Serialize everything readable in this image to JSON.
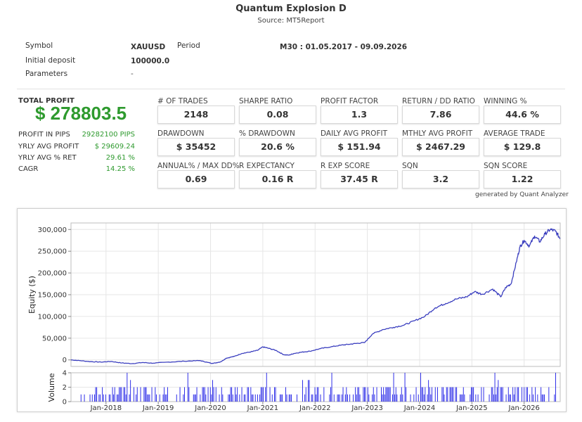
{
  "report": {
    "title": "Quantum Explosion D",
    "source": "Source: MT5Report"
  },
  "info": {
    "symbol_label": "Symbol",
    "symbol_value": "XAUUSD",
    "period_label": "Period",
    "period_value": "M30 : 01.05.2017 - 09.09.2026",
    "deposit_label": "Initial deposit",
    "deposit_value": "100000.0",
    "parameters_label": "Parameters",
    "parameters_value": "-"
  },
  "summary": {
    "total_profit_label": "TOTAL PROFIT",
    "total_profit_value": "$ 278803.5",
    "rows": [
      {
        "label": "PROFIT IN PIPS",
        "value": "29282100 PIPS"
      },
      {
        "label": "YRLY AVG PROFIT",
        "value": "$ 29609.24"
      },
      {
        "label": "YRLY AVG % RET",
        "value": "29.61 %"
      },
      {
        "label": "CAGR",
        "value": "14.25 %"
      }
    ],
    "accent_color": "#2e9a2e"
  },
  "stats": [
    {
      "label": "# OF TRADES",
      "value": "2148"
    },
    {
      "label": "SHARPE RATIO",
      "value": "0.08"
    },
    {
      "label": "PROFIT FACTOR",
      "value": "1.3"
    },
    {
      "label": "RETURN / DD RATIO",
      "value": "7.86"
    },
    {
      "label": "WINNING %",
      "value": "44.6 %"
    },
    {
      "label": "DRAWDOWN",
      "value": "$ 35452"
    },
    {
      "label": "% DRAWDOWN",
      "value": "20.6 %"
    },
    {
      "label": "DAILY AVG PROFIT",
      "value": "$ 151.94"
    },
    {
      "label": "MTHLY AVG PROFIT",
      "value": "$ 2467.29"
    },
    {
      "label": "AVERAGE TRADE",
      "value": "$ 129.8"
    },
    {
      "label": "ANNUAL% / MAX DD%",
      "value": "0.69"
    },
    {
      "label": "R EXPECTANCY",
      "value": "0.16 R"
    },
    {
      "label": "R EXP SCORE",
      "value": "37.45 R"
    },
    {
      "label": "SQN",
      "value": "3.2"
    },
    {
      "label": "SQN SCORE",
      "value": "1.22"
    }
  ],
  "generated_by": "generated by Quant Analyzer",
  "chart_data": {
    "type": "line",
    "ylabel": "Equity ($)",
    "ylim": [
      -15000,
      315000
    ],
    "yticks": [
      {
        "value": 0,
        "label": "0"
      },
      {
        "value": 50000,
        "label": "50,000"
      },
      {
        "value": 100000,
        "label": "100,000"
      },
      {
        "value": 150000,
        "label": "150,000"
      },
      {
        "value": 200000,
        "label": "200,000"
      },
      {
        "value": 250000,
        "label": "250,000"
      },
      {
        "value": 300000,
        "label": "300,000"
      }
    ],
    "xlim": [
      2017.33,
      2026.69
    ],
    "xticks": [
      {
        "value": 2018.0,
        "label": "Jan-2018"
      },
      {
        "value": 2019.0,
        "label": "Jan-2019"
      },
      {
        "value": 2020.0,
        "label": "Jan-2020"
      },
      {
        "value": 2021.0,
        "label": "Jan-2021"
      },
      {
        "value": 2022.0,
        "label": "Jan-2022"
      },
      {
        "value": 2023.0,
        "label": "Jan-2023"
      },
      {
        "value": 2024.0,
        "label": "Jan-2024"
      },
      {
        "value": 2025.0,
        "label": "Jan-2025"
      },
      {
        "value": 2026.0,
        "label": "Jan-2026"
      }
    ],
    "line_color": "#3b3fbf",
    "grid": true,
    "equity": [
      [
        2017.33,
        0
      ],
      [
        2017.5,
        -1500
      ],
      [
        2017.7,
        -4000
      ],
      [
        2017.9,
        -5000
      ],
      [
        2018.1,
        -3500
      ],
      [
        2018.3,
        -7000
      ],
      [
        2018.5,
        -8500
      ],
      [
        2018.7,
        -6000
      ],
      [
        2018.9,
        -7500
      ],
      [
        2019.2,
        -5000
      ],
      [
        2019.5,
        -3000
      ],
      [
        2019.8,
        -1500
      ],
      [
        2019.95,
        -6000
      ],
      [
        2020.05,
        -8000
      ],
      [
        2020.2,
        -4000
      ],
      [
        2020.3,
        4000
      ],
      [
        2020.45,
        8000
      ],
      [
        2020.6,
        15000
      ],
      [
        2020.75,
        18000
      ],
      [
        2020.9,
        22000
      ],
      [
        2021.0,
        30000
      ],
      [
        2021.1,
        27000
      ],
      [
        2021.25,
        22000
      ],
      [
        2021.4,
        12000
      ],
      [
        2021.5,
        11000
      ],
      [
        2021.6,
        15000
      ],
      [
        2021.75,
        18000
      ],
      [
        2021.9,
        20000
      ],
      [
        2022.1,
        26000
      ],
      [
        2022.3,
        30000
      ],
      [
        2022.5,
        34000
      ],
      [
        2022.65,
        36000
      ],
      [
        2022.8,
        38000
      ],
      [
        2022.95,
        40000
      ],
      [
        2023.1,
        60000
      ],
      [
        2023.3,
        70000
      ],
      [
        2023.5,
        75000
      ],
      [
        2023.7,
        80000
      ],
      [
        2023.9,
        90000
      ],
      [
        2024.1,
        100000
      ],
      [
        2024.3,
        120000
      ],
      [
        2024.5,
        130000
      ],
      [
        2024.7,
        140000
      ],
      [
        2024.9,
        145000
      ],
      [
        2025.05,
        157000
      ],
      [
        2025.2,
        151000
      ],
      [
        2025.4,
        163000
      ],
      [
        2025.55,
        145000
      ],
      [
        2025.65,
        167000
      ],
      [
        2025.75,
        175000
      ],
      [
        2025.85,
        225000
      ],
      [
        2025.92,
        260000
      ],
      [
        2026.0,
        275000
      ],
      [
        2026.1,
        262000
      ],
      [
        2026.2,
        285000
      ],
      [
        2026.3,
        272000
      ],
      [
        2026.4,
        290000
      ],
      [
        2026.5,
        300000
      ],
      [
        2026.6,
        296000
      ],
      [
        2026.69,
        278803
      ]
    ],
    "volume": {
      "ylabel": "Volume",
      "ylim": [
        0,
        4
      ],
      "yticks": [
        {
          "value": 0,
          "label": "0"
        },
        {
          "value": 2,
          "label": "2"
        },
        {
          "value": 4,
          "label": "4"
        }
      ],
      "bar_color": "#1a1ae6"
    }
  }
}
